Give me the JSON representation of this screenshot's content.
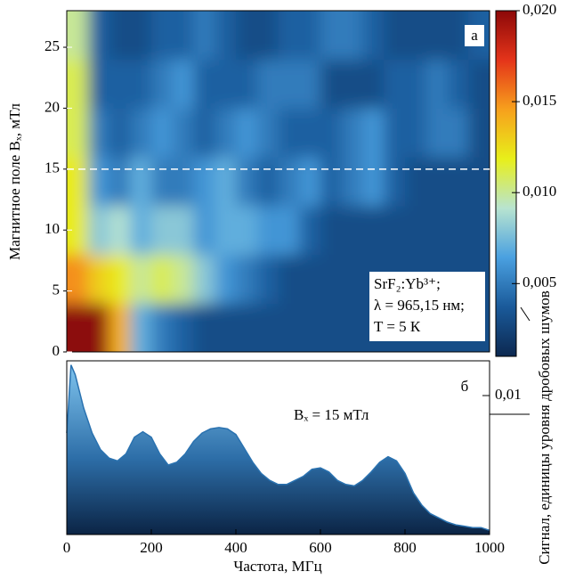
{
  "chart_data": [
    {
      "type": "heatmap",
      "panel_label": "а",
      "ylabel": "Магнитное поле Bₓ, мТл",
      "xlim": [
        0,
        1000
      ],
      "ylim": [
        0,
        28
      ],
      "yticks": [
        0,
        5,
        10,
        15,
        20,
        25
      ],
      "x_bins": [
        0,
        50,
        100,
        150,
        200,
        250,
        300,
        350,
        400,
        450,
        500,
        550,
        600,
        650,
        700,
        750,
        800,
        850,
        900,
        950,
        1000
      ],
      "y_bins": [
        0,
        4,
        8,
        12,
        16,
        20,
        24,
        28
      ],
      "z": [
        [
          0.02,
          0.02,
          0.014,
          0.007,
          0.005,
          0.004,
          0.003,
          0.003,
          0.003,
          0.003,
          0.003,
          0.003,
          0.003,
          0.003,
          0.003,
          0.003,
          0.003,
          0.003,
          0.003,
          0.003
        ],
        [
          0.015,
          0.013,
          0.012,
          0.01,
          0.011,
          0.01,
          0.008,
          0.006,
          0.005,
          0.004,
          0.003,
          0.003,
          0.003,
          0.003,
          0.003,
          0.003,
          0.003,
          0.003,
          0.003,
          0.003
        ],
        [
          0.012,
          0.008,
          0.009,
          0.007,
          0.008,
          0.008,
          0.006,
          0.007,
          0.007,
          0.006,
          0.006,
          0.004,
          0.003,
          0.003,
          0.003,
          0.003,
          0.003,
          0.003,
          0.003,
          0.003
        ],
        [
          0.012,
          0.006,
          0.005,
          0.007,
          0.005,
          0.005,
          0.006,
          0.007,
          0.005,
          0.004,
          0.005,
          0.006,
          0.004,
          0.005,
          0.006,
          0.004,
          0.003,
          0.003,
          0.003,
          0.003
        ],
        [
          0.011,
          0.005,
          0.004,
          0.005,
          0.006,
          0.005,
          0.004,
          0.005,
          0.006,
          0.005,
          0.004,
          0.004,
          0.004,
          0.005,
          0.006,
          0.004,
          0.004,
          0.005,
          0.005,
          0.003
        ],
        [
          0.011,
          0.004,
          0.004,
          0.004,
          0.005,
          0.006,
          0.004,
          0.004,
          0.004,
          0.005,
          0.005,
          0.005,
          0.003,
          0.003,
          0.003,
          0.004,
          0.004,
          0.005,
          0.004,
          0.003
        ],
        [
          0.01,
          0.004,
          0.003,
          0.003,
          0.004,
          0.004,
          0.005,
          0.004,
          0.003,
          0.003,
          0.004,
          0.004,
          0.005,
          0.005,
          0.004,
          0.003,
          0.003,
          0.003,
          0.003,
          0.004
        ]
      ],
      "zlim": [
        0.001,
        0.02
      ],
      "zticks": [
        {
          "value": 0.005,
          "label": "0,005"
        },
        {
          "value": 0.01,
          "label": "0,010"
        },
        {
          "value": 0.015,
          "label": "0,015"
        },
        {
          "value": 0.02,
          "label": "0,020"
        }
      ],
      "colormap": [
        "#0c2850",
        "#1a5a9a",
        "#4aa0e0",
        "#b8e4d0",
        "#e8ef1a",
        "#f7a01c",
        "#e4341a",
        "#8c0808"
      ],
      "colorbar_label": "Сигнал, единицы уровня дробовых шумов",
      "hline": 15,
      "annotations": [
        "SrF₂:Yb³⁺;",
        "λ = 965,15 нм;",
        "T = 5 К"
      ]
    },
    {
      "type": "area",
      "panel_label": "б",
      "annotation": "Bₓ = 15 мТл",
      "xlabel": "Частота, МГц",
      "x": [
        0,
        10,
        20,
        40,
        60,
        80,
        100,
        120,
        140,
        160,
        180,
        200,
        220,
        240,
        260,
        280,
        300,
        320,
        340,
        360,
        380,
        400,
        420,
        440,
        460,
        480,
        500,
        520,
        540,
        560,
        580,
        600,
        620,
        640,
        660,
        680,
        700,
        720,
        740,
        760,
        780,
        800,
        820,
        840,
        860,
        880,
        900,
        920,
        940,
        960,
        980,
        1000
      ],
      "values": [
        0.0073,
        0.0122,
        0.0115,
        0.0091,
        0.0073,
        0.0061,
        0.0055,
        0.0053,
        0.0058,
        0.007,
        0.0074,
        0.007,
        0.0058,
        0.005,
        0.0052,
        0.0058,
        0.0067,
        0.0073,
        0.0076,
        0.0077,
        0.0076,
        0.0072,
        0.0062,
        0.0052,
        0.0044,
        0.0039,
        0.0036,
        0.0036,
        0.0039,
        0.0042,
        0.0047,
        0.0048,
        0.0045,
        0.0039,
        0.0036,
        0.0035,
        0.0039,
        0.0045,
        0.0052,
        0.0056,
        0.0053,
        0.0044,
        0.003,
        0.0021,
        0.0015,
        0.0012,
        0.0009,
        0.0007,
        0.0006,
        0.0005,
        0.0005,
        0.0003
      ],
      "xlim": [
        0,
        1000
      ],
      "ylim": [
        0,
        0.0125
      ],
      "xticks": [
        0,
        200,
        400,
        600,
        800,
        1000
      ],
      "yticks": [
        {
          "value": 0.01,
          "label": "0,01"
        }
      ]
    }
  ]
}
